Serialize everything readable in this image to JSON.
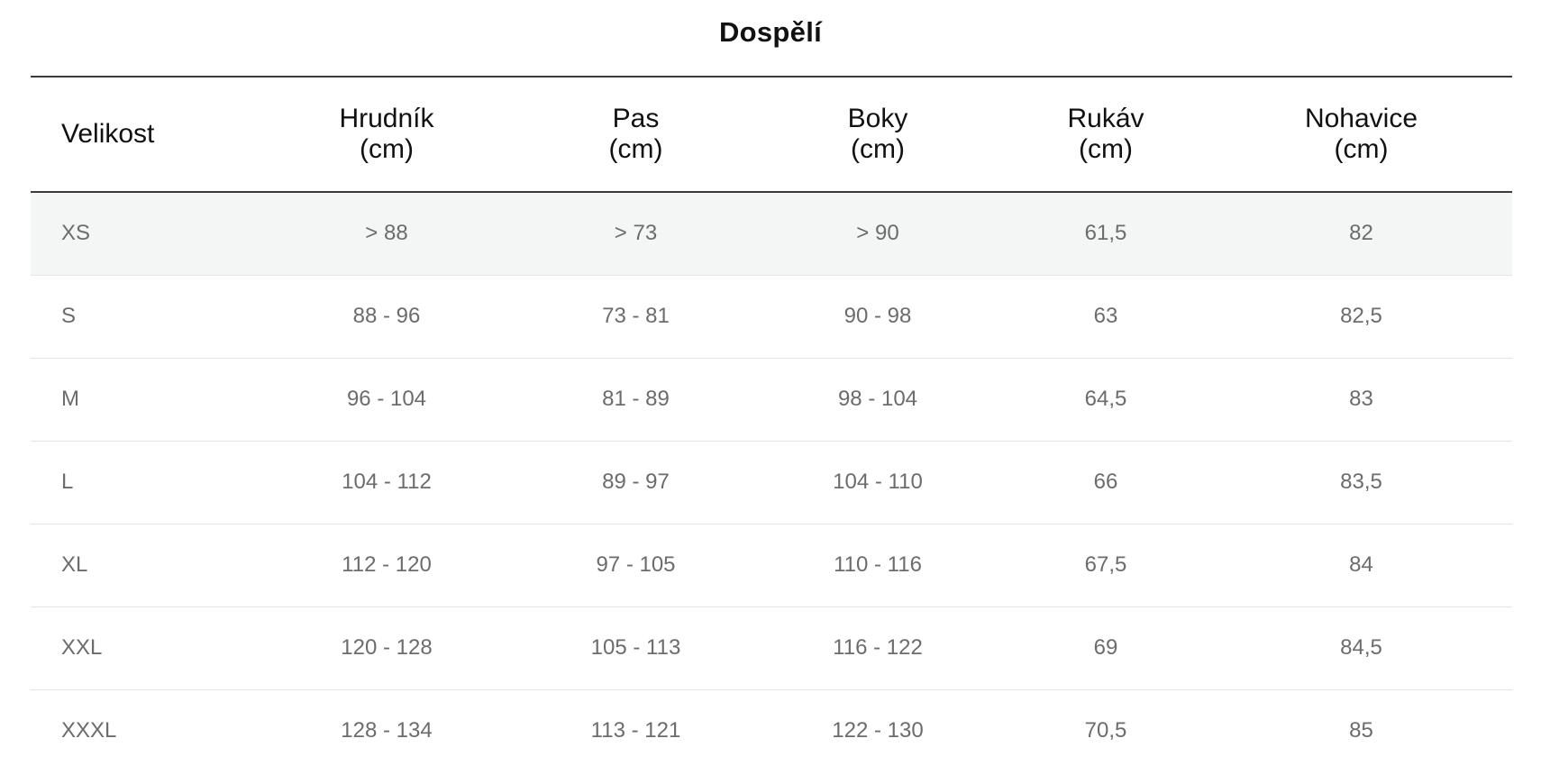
{
  "title": "Dospělí",
  "table": {
    "headers": [
      {
        "line1": "Velikost",
        "line2": ""
      },
      {
        "line1": "Hrudník",
        "line2": "(cm)"
      },
      {
        "line1": "Pas",
        "line2": "(cm)"
      },
      {
        "line1": "Boky",
        "line2": "(cm)"
      },
      {
        "line1": "Rukáv",
        "line2": "(cm)"
      },
      {
        "line1": "Nohavice",
        "line2": "(cm)"
      }
    ],
    "rows": [
      [
        "XS",
        "> 88",
        "> 73",
        "> 90",
        "61,5",
        "82"
      ],
      [
        "S",
        "88 - 96",
        "73 - 81",
        "90 - 98",
        "63",
        "82,5"
      ],
      [
        "M",
        "96 - 104",
        "81 - 89",
        "98 - 104",
        "64,5",
        "83"
      ],
      [
        "L",
        "104 - 112",
        "89 - 97",
        "104 - 110",
        "66",
        "83,5"
      ],
      [
        "XL",
        "112 - 120",
        "97 - 105",
        "110 - 116",
        "67,5",
        "84"
      ],
      [
        "XXL",
        "120 - 128",
        "105 - 113",
        "116 - 122",
        "69",
        "84,5"
      ],
      [
        "XXXL",
        "128 - 134",
        "113 - 121",
        "122 - 130",
        "70,5",
        "85"
      ]
    ]
  }
}
